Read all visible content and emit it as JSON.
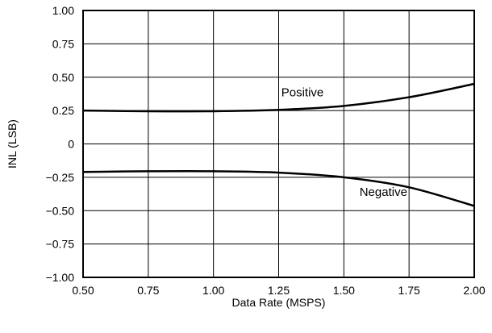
{
  "chart_data": {
    "type": "line",
    "xlabel": "Data Rate (MSPS)",
    "ylabel": "INL (LSB)",
    "xlim": [
      0.5,
      2.0
    ],
    "ylim": [
      -1.0,
      1.0
    ],
    "grid": true,
    "x_ticks": [
      0.5,
      0.75,
      1.0,
      1.25,
      1.5,
      1.75,
      2.0
    ],
    "x_tick_labels": [
      "0.50",
      "0.75",
      "1.00",
      "1.25",
      "1.50",
      "1.75",
      "2.00"
    ],
    "y_ticks": [
      1.0,
      0.75,
      0.5,
      0.25,
      0,
      -0.25,
      -0.5,
      -0.75,
      -1.0
    ],
    "y_tick_labels": [
      "1.00",
      "0.75",
      "0.50",
      "0.25",
      "0",
      "−0.25",
      "−0.50",
      "−0.75",
      "−1.00"
    ],
    "series": [
      {
        "name": "Positive",
        "color": "#000000",
        "x": [
          0.5,
          0.75,
          1.0,
          1.25,
          1.5,
          1.75,
          2.0
        ],
        "y": [
          0.25,
          0.245,
          0.245,
          0.255,
          0.285,
          0.35,
          0.45
        ]
      },
      {
        "name": "Negative",
        "color": "#000000",
        "x": [
          0.5,
          0.75,
          1.0,
          1.25,
          1.5,
          1.75,
          2.0
        ],
        "y": [
          -0.21,
          -0.205,
          -0.205,
          -0.215,
          -0.25,
          -0.325,
          -0.465
        ]
      }
    ]
  }
}
